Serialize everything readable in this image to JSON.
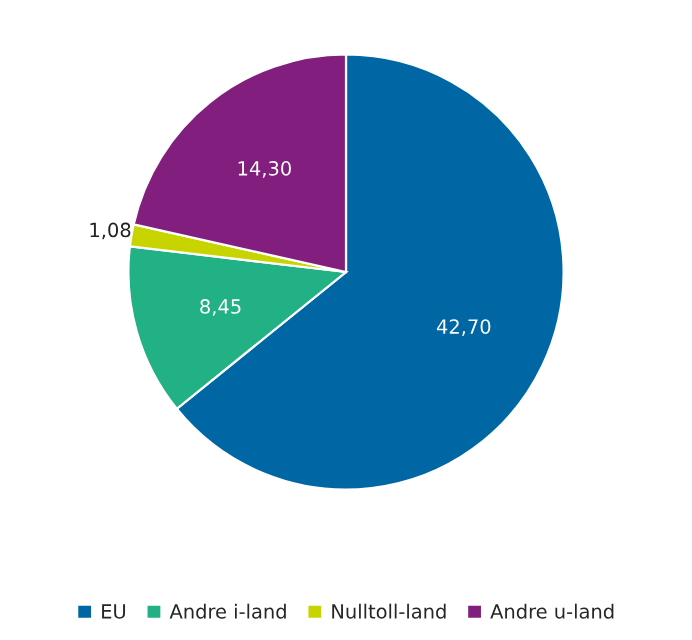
{
  "chart_data": {
    "type": "pie",
    "categories": [
      "EU",
      "Andre i-land",
      "Nulltoll-land",
      "Andre u-land"
    ],
    "values": [
      42.7,
      8.45,
      1.08,
      14.3
    ],
    "colors": [
      "#0067a5",
      "#22b085",
      "#c8d400",
      "#821f7e"
    ],
    "value_labels": [
      "42,70",
      "8,45",
      "1,08",
      "14,30"
    ],
    "legend": "bottom"
  }
}
